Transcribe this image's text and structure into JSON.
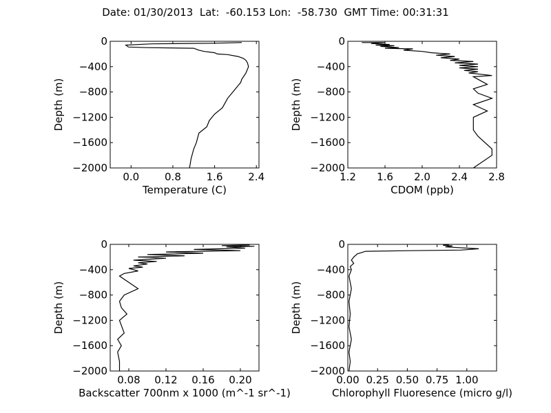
{
  "title": "Date: 01/30/2013  Lat:  -60.153 Lon:  -58.730  GMT Time: 00:31:31",
  "chart_data": [
    {
      "type": "line",
      "xlabel": "Temperature (C)",
      "ylabel": "Depth (m)",
      "xlim": [
        -0.4,
        2.45
      ],
      "ylim": [
        -2000,
        0
      ],
      "xticks": [
        0.0,
        0.8,
        1.6,
        2.4
      ],
      "xtick_labels": [
        "0.0",
        "0.8",
        "1.6",
        "2.4"
      ],
      "yticks": [
        0,
        -400,
        -800,
        -1200,
        -1600,
        -2000
      ],
      "ytick_labels": [
        "0",
        "−400",
        "−800",
        "−1200",
        "−1600",
        "−2000"
      ],
      "series": [
        {
          "x": [
            2.12,
            1.6,
            0.4,
            -0.1,
            -0.05,
            0.3,
            1.2,
            1.3,
            1.35,
            1.4,
            1.6,
            1.65,
            1.85,
            2.05,
            2.15,
            2.2,
            2.23,
            2.25,
            2.2,
            2.12,
            2.1,
            2.05,
            2.0,
            1.95,
            1.85,
            1.75,
            1.6,
            1.5,
            1.45,
            1.3,
            1.25,
            1.2,
            1.15,
            1.12
          ],
          "y": [
            -20,
            -30,
            -40,
            -60,
            -90,
            -100,
            -110,
            -140,
            -150,
            -160,
            -180,
            -200,
            -210,
            -240,
            -270,
            -300,
            -340,
            -400,
            -500,
            -600,
            -650,
            -700,
            -750,
            -800,
            -900,
            -1050,
            -1150,
            -1250,
            -1350,
            -1450,
            -1600,
            -1700,
            -1850,
            -2000
          ]
        }
      ]
    },
    {
      "type": "line",
      "xlabel": "CDOM (ppb)",
      "ylabel": "Depth (m)",
      "xlim": [
        1.2,
        2.8
      ],
      "ylim": [
        -2000,
        0
      ],
      "xticks": [
        1.2,
        1.6,
        2.0,
        2.4,
        2.8
      ],
      "xtick_labels": [
        "1.2",
        "1.6",
        "2.0",
        "2.4",
        "2.8"
      ],
      "yticks": [
        0,
        -400,
        -800,
        -1200,
        -1600,
        -2000
      ],
      "ytick_labels": [
        "0",
        "−400",
        "−800",
        "−1200",
        "−1600",
        "−2000"
      ],
      "series": [
        {
          "x": [
            1.35,
            1.6,
            1.45,
            1.65,
            1.5,
            1.7,
            1.55,
            1.75,
            1.6,
            1.9,
            1.8,
            2.0,
            2.1,
            2.3,
            2.15,
            2.35,
            2.2,
            2.4,
            2.3,
            2.55,
            2.35,
            2.6,
            2.4,
            2.6,
            2.4,
            2.6,
            2.45,
            2.6,
            2.5,
            2.75,
            2.55,
            2.6,
            2.7,
            2.55,
            2.6,
            2.75,
            2.55,
            2.7,
            2.55,
            2.55,
            2.6,
            2.75,
            2.75,
            2.55
          ],
          "y": [
            -20,
            -20,
            -35,
            -50,
            -60,
            -70,
            -80,
            -100,
            -110,
            -120,
            -140,
            -160,
            -180,
            -200,
            -220,
            -240,
            -260,
            -280,
            -300,
            -320,
            -340,
            -360,
            -380,
            -400,
            -420,
            -440,
            -460,
            -480,
            -500,
            -540,
            -560,
            -600,
            -680,
            -750,
            -820,
            -900,
            -1000,
            -1100,
            -1200,
            -1400,
            -1500,
            -1700,
            -1800,
            -2000
          ]
        }
      ]
    },
    {
      "type": "line",
      "xlabel": "Backscatter 700nm x 1000 (m^-1 sr^-1)",
      "ylabel": "Depth (m)",
      "xlim": [
        0.06,
        0.22
      ],
      "ylim": [
        -2000,
        0
      ],
      "xticks": [
        0.08,
        0.12,
        0.16,
        0.2
      ],
      "xtick_labels": [
        "0.08",
        "0.12",
        "0.16",
        "0.20"
      ],
      "yticks": [
        0,
        -400,
        -800,
        -1200,
        -1600,
        -2000
      ],
      "ytick_labels": [
        "0",
        "−400",
        "−800",
        "−1200",
        "−1600",
        "−2000"
      ],
      "series": [
        {
          "x": [
            0.21,
            0.18,
            0.215,
            0.185,
            0.205,
            0.15,
            0.2,
            0.12,
            0.16,
            0.1,
            0.14,
            0.09,
            0.12,
            0.085,
            0.11,
            0.09,
            0.1,
            0.085,
            0.095,
            0.08,
            0.09,
            0.075,
            0.07,
            0.08,
            0.09,
            0.075,
            0.07,
            0.072,
            0.078,
            0.07,
            0.075,
            0.068,
            0.072,
            0.068,
            0.07,
            0.07
          ],
          "y": [
            -10,
            -20,
            -30,
            -40,
            -60,
            -80,
            -100,
            -120,
            -140,
            -160,
            -180,
            -200,
            -220,
            -250,
            -270,
            -290,
            -310,
            -340,
            -360,
            -380,
            -420,
            -460,
            -500,
            -600,
            -700,
            -800,
            -900,
            -1000,
            -1100,
            -1200,
            -1400,
            -1500,
            -1600,
            -1700,
            -1850,
            -2000
          ]
        }
      ]
    },
    {
      "type": "line",
      "xlabel": "Chlorophyll Fluoresence (micro g/l)",
      "ylabel": "Depth (m)",
      "xlim": [
        0.0,
        1.25
      ],
      "ylim": [
        -2000,
        0
      ],
      "xticks": [
        0.0,
        0.25,
        0.5,
        0.75,
        1.0
      ],
      "xtick_labels": [
        "0.00",
        "0.25",
        "0.50",
        "0.75",
        "1.00"
      ],
      "yticks": [
        0,
        -400,
        -800,
        -1200,
        -1600,
        -2000
      ],
      "ytick_labels": [
        "0",
        "−400",
        "−800",
        "−1200",
        "−1600",
        "−2000"
      ],
      "series": [
        {
          "x": [
            0.85,
            0.8,
            0.88,
            0.82,
            1.1,
            0.95,
            0.5,
            0.15,
            0.08,
            0.05,
            0.03,
            0.05,
            0.02,
            0.03,
            0.02,
            0.01,
            0.03,
            0.01,
            0.02,
            0.01,
            0.03,
            0.01,
            0.02,
            0.01
          ],
          "y": [
            -5,
            -15,
            -25,
            -40,
            -70,
            -90,
            -100,
            -110,
            -150,
            -200,
            -250,
            -300,
            -350,
            -400,
            -450,
            -500,
            -700,
            -900,
            -1100,
            -1300,
            -1500,
            -1700,
            -1850,
            -2000
          ]
        }
      ]
    }
  ]
}
